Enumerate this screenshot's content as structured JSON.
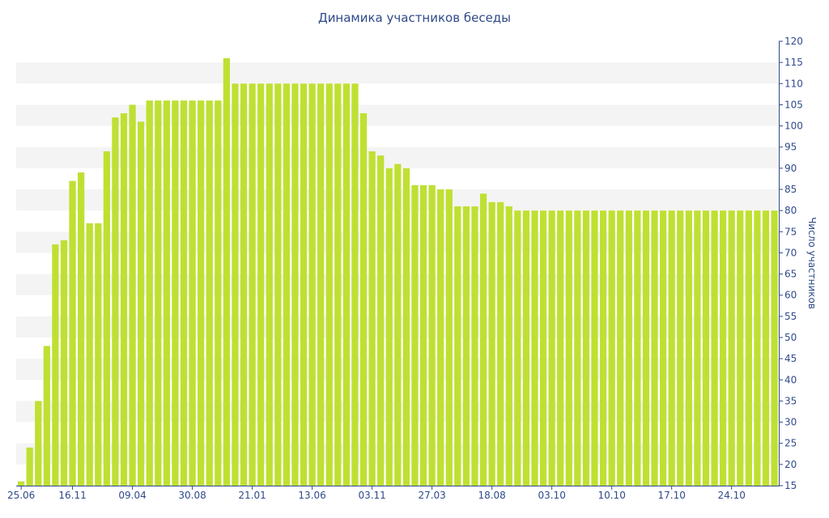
{
  "chart_data": {
    "type": "bar",
    "title": "Динамика участников беседы",
    "xlabel": "",
    "ylabel": "Число участников",
    "ylim": [
      15,
      120
    ],
    "y_ticks": [
      15,
      20,
      25,
      30,
      35,
      40,
      45,
      50,
      55,
      60,
      65,
      70,
      75,
      80,
      85,
      90,
      95,
      100,
      105,
      110,
      115,
      120
    ],
    "y_axis_position": "right",
    "x_tick_labels": [
      "25.06",
      "16.11",
      "09.04",
      "30.08",
      "21.01",
      "13.06",
      "03.11",
      "27.03",
      "18.08",
      "03.10",
      "10.10",
      "17.10",
      "24.10"
    ],
    "grid": "alternating horizontal bands",
    "bar_color": "#bfe032",
    "values": [
      16,
      24,
      35,
      48,
      72,
      73,
      87,
      89,
      77,
      77,
      94,
      102,
      103,
      105,
      101,
      106,
      106,
      106,
      106,
      106,
      106,
      106,
      106,
      106,
      116,
      110,
      110,
      110,
      110,
      110,
      110,
      110,
      110,
      110,
      110,
      110,
      110,
      110,
      110,
      110,
      103,
      94,
      93,
      90,
      91,
      90,
      86,
      86,
      86,
      85,
      85,
      81,
      81,
      81,
      84,
      82,
      82,
      81,
      80,
      80,
      80,
      80,
      80,
      80,
      80,
      80,
      80,
      80,
      80,
      80,
      80,
      80,
      80,
      80,
      80,
      80,
      80,
      80,
      80,
      80,
      80,
      80,
      80,
      80,
      80,
      80,
      80,
      80,
      80
    ]
  }
}
